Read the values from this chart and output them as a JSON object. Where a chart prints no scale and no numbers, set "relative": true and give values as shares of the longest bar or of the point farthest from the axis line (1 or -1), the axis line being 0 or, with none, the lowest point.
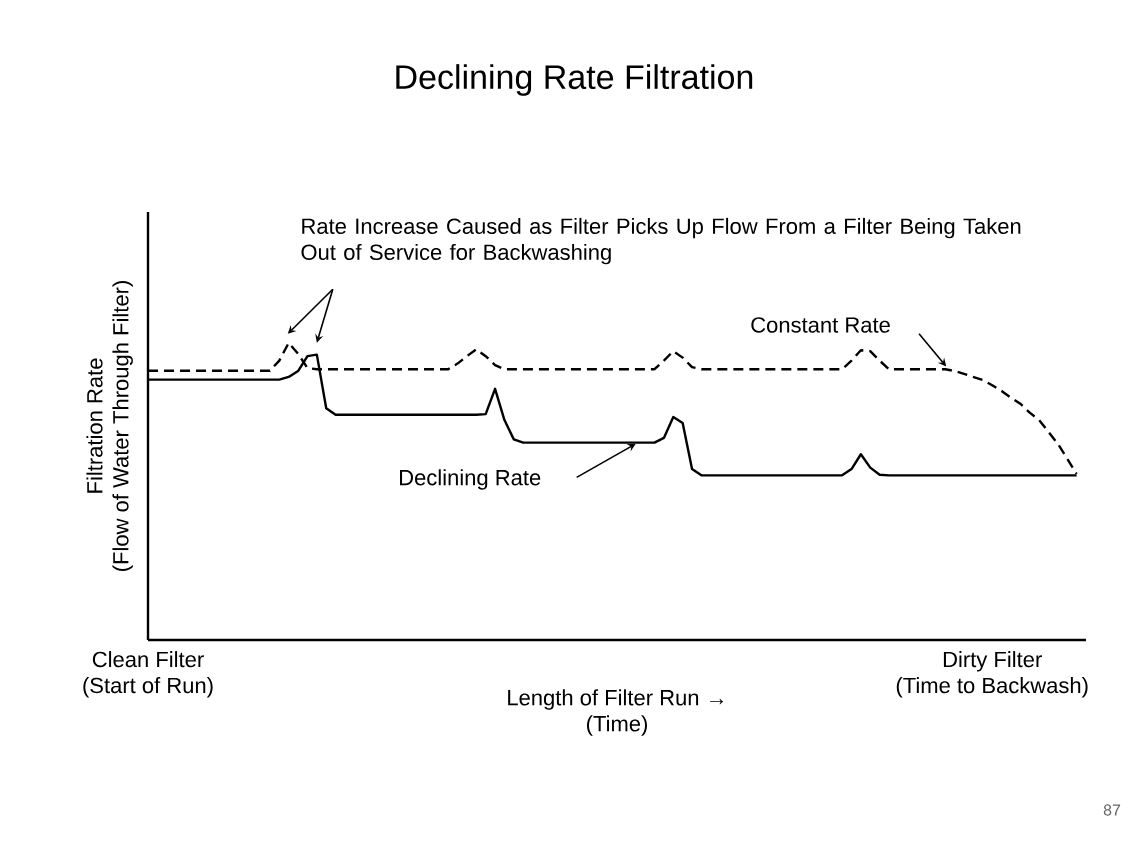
{
  "chart_data": {
    "type": "line",
    "title": "Declining Rate Filtration",
    "xlabel": "Length of Filter Run →\n(Time)",
    "ylabel": "Filtration Rate\n(Flow of Water Through Filter)",
    "relative": true,
    "marker": "none",
    "categories": [
      "Clean Filter\n(Start of Run)",
      null,
      null,
      null,
      null,
      null,
      null,
      null,
      null,
      null,
      null,
      null,
      null,
      null,
      null,
      null,
      null,
      null,
      null,
      null,
      null,
      null,
      null,
      null,
      null,
      null,
      null,
      null,
      null,
      null,
      null,
      null,
      null,
      null,
      null,
      null,
      null,
      null,
      null,
      null,
      null,
      null,
      null,
      null,
      null,
      null,
      null,
      null,
      null,
      null,
      null,
      null,
      null,
      null,
      null,
      null,
      null,
      null,
      null,
      null,
      null,
      null,
      null,
      null,
      null,
      null,
      null,
      null,
      null,
      null,
      null,
      null,
      null,
      null,
      null,
      null,
      null,
      null,
      null,
      null,
      null,
      null,
      null,
      null,
      null,
      null,
      null,
      null,
      null,
      null,
      "Dirty Filter\n(Time to Backwash)",
      null,
      null,
      null,
      null,
      null,
      null,
      null,
      null,
      null,
      null
    ],
    "series": [
      {
        "name": "Constant Rate",
        "color": "#000000",
        "line_style": "dashed",
        "values": [
          0.906,
          0.906,
          0.906,
          0.906,
          0.906,
          0.906,
          0.906,
          0.906,
          0.906,
          0.906,
          0.906,
          0.906,
          0.906,
          0.906,
          0.94,
          1,
          0.963,
          0.915,
          0.911,
          0.911,
          0.911,
          0.911,
          0.911,
          0.911,
          0.911,
          0.911,
          0.911,
          0.911,
          0.911,
          0.911,
          0.911,
          0.911,
          0.911,
          0.93,
          0.955,
          0.978,
          0.955,
          0.925,
          0.911,
          0.911,
          0.911,
          0.911,
          0.911,
          0.911,
          0.911,
          0.911,
          0.911,
          0.911,
          0.911,
          0.911,
          0.911,
          0.911,
          0.911,
          0.911,
          0.911,
          0.94,
          0.972,
          0.95,
          0.918,
          0.911,
          0.911,
          0.911,
          0.911,
          0.911,
          0.911,
          0.911,
          0.911,
          0.911,
          0.911,
          0.911,
          0.911,
          0.911,
          0.911,
          0.911,
          0.911,
          0.94,
          0.975,
          0.972,
          0.94,
          0.911,
          0.911,
          0.911,
          0.911,
          0.911,
          0.911,
          0.911,
          0.905,
          0.895,
          0.885,
          0.875,
          0.857,
          0.838,
          0.815,
          0.795,
          0.765,
          0.74,
          0.7,
          0.66,
          0.61,
          0.559,
          null
        ]
      },
      {
        "name": "Declining Rate",
        "color": "#000000",
        "line_style": "solid",
        "values": [
          0.876,
          0.876,
          0.876,
          0.876,
          0.876,
          0.876,
          0.876,
          0.876,
          0.876,
          0.876,
          0.876,
          0.876,
          0.876,
          0.876,
          0.876,
          0.885,
          0.905,
          0.955,
          0.96,
          0.78,
          0.758,
          0.758,
          0.758,
          0.758,
          0.758,
          0.758,
          0.758,
          0.758,
          0.758,
          0.758,
          0.758,
          0.758,
          0.758,
          0.758,
          0.758,
          0.758,
          0.76,
          0.845,
          0.74,
          0.675,
          0.664,
          0.664,
          0.664,
          0.664,
          0.664,
          0.664,
          0.664,
          0.664,
          0.664,
          0.664,
          0.664,
          0.664,
          0.664,
          0.664,
          0.664,
          0.68,
          0.75,
          0.73,
          0.575,
          0.554,
          0.554,
          0.554,
          0.554,
          0.554,
          0.554,
          0.554,
          0.554,
          0.554,
          0.554,
          0.554,
          0.554,
          0.554,
          0.554,
          0.554,
          0.554,
          0.575,
          0.625,
          0.58,
          0.556,
          0.554,
          0.554,
          0.554,
          0.554,
          0.554,
          0.554,
          0.554,
          0.554,
          0.554,
          0.554,
          0.554,
          0.554,
          0.554,
          0.554,
          0.554,
          0.554,
          0.554,
          0.554,
          0.554,
          0.554,
          0.554,
          null
        ]
      }
    ],
    "annotations": [
      "Rate Increase Caused as Filter Picks Up Flow From a Filter Being Taken Out of Service for Backwashing",
      "87"
    ]
  }
}
